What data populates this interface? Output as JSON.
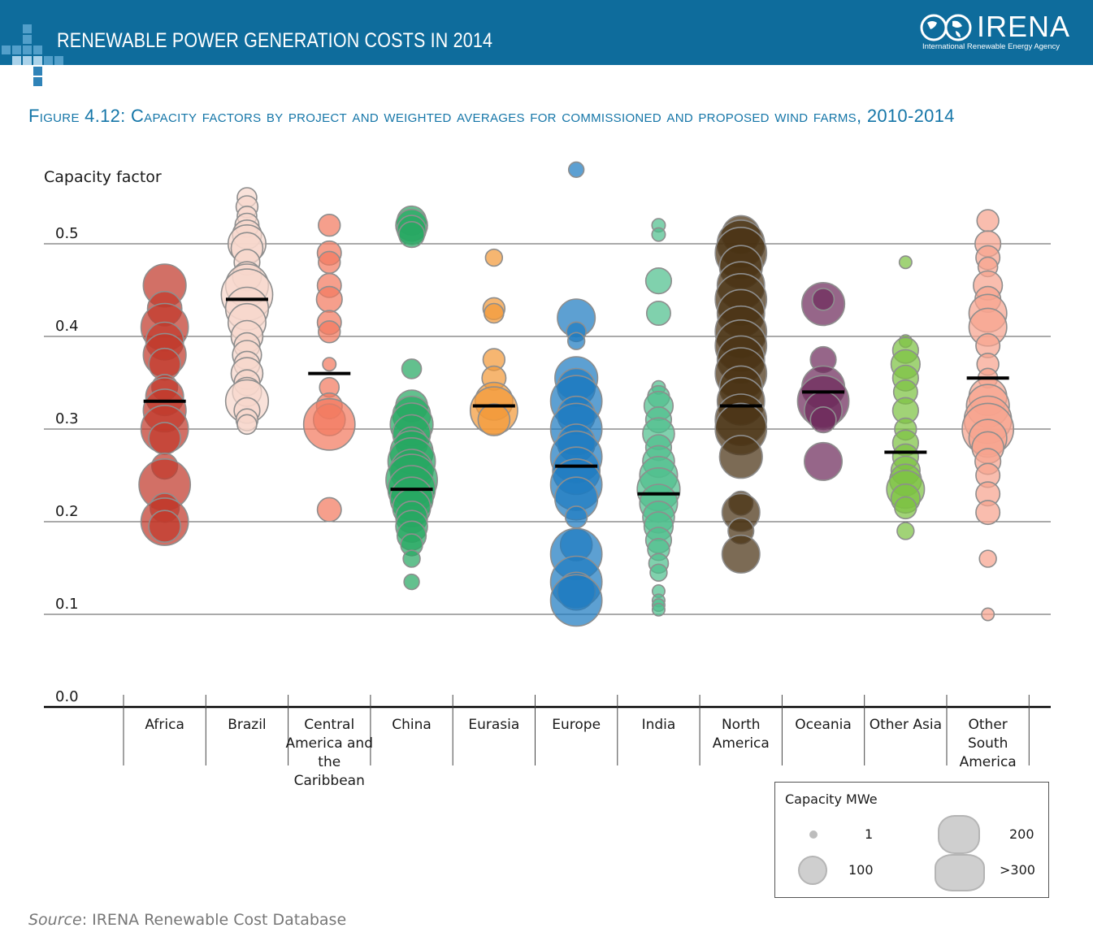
{
  "header": {
    "title": "RENEWABLE POWER GENERATION COSTS IN 2014",
    "logo_name": "IRENA",
    "logo_subtitle": "International Renewable Energy Agency"
  },
  "figure": {
    "title": "Figure 4.12: Capacity factors by project and weighted averages for commissioned and proposed wind farms, 2010-2014"
  },
  "source": {
    "label": "Source",
    "text": ": IRENA Renewable Cost Database"
  },
  "legend": {
    "title": "Capacity MWe",
    "items": [
      {
        "label": "1"
      },
      {
        "label": "100"
      },
      {
        "label": "200"
      },
      {
        "label": ">300"
      }
    ]
  },
  "chart_data": {
    "type": "scatter",
    "title": "Figure 4.12: Capacity factors by project and weighted averages for commissioned and proposed wind farms, 2010-2014",
    "ylabel": "Capacity factor",
    "xlabel": "",
    "ylim": [
      0.0,
      0.55
    ],
    "yticks": [
      "0.0",
      "0.1",
      "0.2",
      "0.3",
      "0.4",
      "0.5"
    ],
    "grid": true,
    "categories": [
      "Africa",
      "Brazil",
      "Central America and the Caribbean",
      "China",
      "Eurasia",
      "Europe",
      "India",
      "North America",
      "Oceania",
      "Other Asia",
      "Other South America"
    ],
    "colors": [
      "#c0392b",
      "#f6d7cc",
      "#f27a60",
      "#27a862",
      "#f39a3a",
      "#1f7bc1",
      "#4fbf8e",
      "#4a3213",
      "#6e2b5b",
      "#7dc242",
      "#f7a48f"
    ],
    "weighted_average": [
      0.33,
      0.44,
      0.36,
      0.235,
      0.325,
      0.26,
      0.23,
      0.325,
      0.34,
      0.275,
      0.355
    ],
    "series": [
      {
        "name": "Africa",
        "points": [
          {
            "y": 0.455,
            "mw": 200
          },
          {
            "y": 0.43,
            "mw": 120
          },
          {
            "y": 0.41,
            "mw": 250
          },
          {
            "y": 0.395,
            "mw": 150
          },
          {
            "y": 0.38,
            "mw": 200
          },
          {
            "y": 0.37,
            "mw": 100
          },
          {
            "y": 0.345,
            "mw": 60
          },
          {
            "y": 0.335,
            "mw": 150
          },
          {
            "y": 0.32,
            "mw": 200
          },
          {
            "y": 0.3,
            "mw": 250
          },
          {
            "y": 0.29,
            "mw": 100
          },
          {
            "y": 0.26,
            "mw": 60
          },
          {
            "y": 0.24,
            "mw": 300
          },
          {
            "y": 0.215,
            "mw": 80
          },
          {
            "y": 0.2,
            "mw": 250
          },
          {
            "y": 0.195,
            "mw": 100
          }
        ]
      },
      {
        "name": "Brazil",
        "points": [
          {
            "y": 0.55,
            "mw": 30
          },
          {
            "y": 0.54,
            "mw": 40
          },
          {
            "y": 0.53,
            "mw": 30
          },
          {
            "y": 0.52,
            "mw": 50
          },
          {
            "y": 0.51,
            "mw": 80
          },
          {
            "y": 0.5,
            "mw": 150
          },
          {
            "y": 0.495,
            "mw": 100
          },
          {
            "y": 0.48,
            "mw": 60
          },
          {
            "y": 0.465,
            "mw": 80
          },
          {
            "y": 0.455,
            "mw": 200
          },
          {
            "y": 0.445,
            "mw": 300
          },
          {
            "y": 0.43,
            "mw": 200
          },
          {
            "y": 0.415,
            "mw": 150
          },
          {
            "y": 0.4,
            "mw": 100
          },
          {
            "y": 0.39,
            "mw": 60
          },
          {
            "y": 0.38,
            "mw": 80
          },
          {
            "y": 0.37,
            "mw": 60
          },
          {
            "y": 0.36,
            "mw": 100
          },
          {
            "y": 0.35,
            "mw": 60
          },
          {
            "y": 0.34,
            "mw": 80
          },
          {
            "y": 0.33,
            "mw": 200
          },
          {
            "y": 0.32,
            "mw": 60
          },
          {
            "y": 0.31,
            "mw": 40
          },
          {
            "y": 0.305,
            "mw": 30
          }
        ]
      },
      {
        "name": "Central America and the Caribbean",
        "points": [
          {
            "y": 0.52,
            "mw": 40
          },
          {
            "y": 0.49,
            "mw": 50
          },
          {
            "y": 0.48,
            "mw": 40
          },
          {
            "y": 0.455,
            "mw": 50
          },
          {
            "y": 0.44,
            "mw": 60
          },
          {
            "y": 0.415,
            "mw": 50
          },
          {
            "y": 0.405,
            "mw": 40
          },
          {
            "y": 0.37,
            "mw": 10
          },
          {
            "y": 0.345,
            "mw": 30
          },
          {
            "y": 0.325,
            "mw": 60
          },
          {
            "y": 0.31,
            "mw": 100
          },
          {
            "y": 0.305,
            "mw": 300
          },
          {
            "y": 0.213,
            "mw": 50
          }
        ]
      },
      {
        "name": "China",
        "points": [
          {
            "y": 0.525,
            "mw": 80
          },
          {
            "y": 0.52,
            "mw": 100
          },
          {
            "y": 0.515,
            "mw": 80
          },
          {
            "y": 0.51,
            "mw": 60
          },
          {
            "y": 0.365,
            "mw": 30
          },
          {
            "y": 0.325,
            "mw": 100
          },
          {
            "y": 0.315,
            "mw": 150
          },
          {
            "y": 0.305,
            "mw": 200
          },
          {
            "y": 0.295,
            "mw": 150
          },
          {
            "y": 0.285,
            "mw": 100
          },
          {
            "y": 0.275,
            "mw": 200
          },
          {
            "y": 0.265,
            "mw": 250
          },
          {
            "y": 0.255,
            "mw": 200
          },
          {
            "y": 0.245,
            "mw": 300
          },
          {
            "y": 0.235,
            "mw": 250
          },
          {
            "y": 0.225,
            "mw": 200
          },
          {
            "y": 0.215,
            "mw": 150
          },
          {
            "y": 0.205,
            "mw": 100
          },
          {
            "y": 0.195,
            "mw": 100
          },
          {
            "y": 0.185,
            "mw": 80
          },
          {
            "y": 0.175,
            "mw": 40
          },
          {
            "y": 0.16,
            "mw": 20
          },
          {
            "y": 0.135,
            "mw": 15
          }
        ]
      },
      {
        "name": "Eurasia",
        "points": [
          {
            "y": 0.485,
            "mw": 20
          },
          {
            "y": 0.43,
            "mw": 40
          },
          {
            "y": 0.425,
            "mw": 30
          },
          {
            "y": 0.375,
            "mw": 40
          },
          {
            "y": 0.355,
            "mw": 50
          },
          {
            "y": 0.33,
            "mw": 150
          },
          {
            "y": 0.32,
            "mw": 250
          },
          {
            "y": 0.31,
            "mw": 100
          }
        ]
      },
      {
        "name": "Europe",
        "points": [
          {
            "y": 0.58,
            "mw": 15
          },
          {
            "y": 0.42,
            "mw": 150
          },
          {
            "y": 0.405,
            "mw": 30
          },
          {
            "y": 0.395,
            "mw": 20
          },
          {
            "y": 0.355,
            "mw": 200
          },
          {
            "y": 0.345,
            "mw": 150
          },
          {
            "y": 0.33,
            "mw": 300
          },
          {
            "y": 0.315,
            "mw": 150
          },
          {
            "y": 0.3,
            "mw": 300
          },
          {
            "y": 0.285,
            "mw": 150
          },
          {
            "y": 0.27,
            "mw": 300
          },
          {
            "y": 0.255,
            "mw": 250
          },
          {
            "y": 0.24,
            "mw": 300
          },
          {
            "y": 0.225,
            "mw": 200
          },
          {
            "y": 0.205,
            "mw": 40
          },
          {
            "y": 0.175,
            "mw": 100
          },
          {
            "y": 0.165,
            "mw": 300
          },
          {
            "y": 0.135,
            "mw": 300
          },
          {
            "y": 0.125,
            "mw": 150
          },
          {
            "y": 0.115,
            "mw": 300
          }
        ]
      },
      {
        "name": "India",
        "points": [
          {
            "y": 0.52,
            "mw": 10
          },
          {
            "y": 0.51,
            "mw": 10
          },
          {
            "y": 0.46,
            "mw": 60
          },
          {
            "y": 0.425,
            "mw": 50
          },
          {
            "y": 0.345,
            "mw": 10
          },
          {
            "y": 0.335,
            "mw": 40
          },
          {
            "y": 0.325,
            "mw": 80
          },
          {
            "y": 0.31,
            "mw": 60
          },
          {
            "y": 0.295,
            "mw": 100
          },
          {
            "y": 0.28,
            "mw": 60
          },
          {
            "y": 0.265,
            "mw": 100
          },
          {
            "y": 0.25,
            "mw": 150
          },
          {
            "y": 0.235,
            "mw": 200
          },
          {
            "y": 0.22,
            "mw": 150
          },
          {
            "y": 0.205,
            "mw": 100
          },
          {
            "y": 0.195,
            "mw": 80
          },
          {
            "y": 0.18,
            "mw": 60
          },
          {
            "y": 0.17,
            "mw": 40
          },
          {
            "y": 0.155,
            "mw": 30
          },
          {
            "y": 0.145,
            "mw": 20
          },
          {
            "y": 0.125,
            "mw": 8
          },
          {
            "y": 0.115,
            "mw": 8
          },
          {
            "y": 0.11,
            "mw": 8
          },
          {
            "y": 0.105,
            "mw": 8
          }
        ]
      },
      {
        "name": "North America",
        "points": [
          {
            "y": 0.51,
            "mw": 150
          },
          {
            "y": 0.5,
            "mw": 250
          },
          {
            "y": 0.49,
            "mw": 300
          },
          {
            "y": 0.475,
            "mw": 200
          },
          {
            "y": 0.455,
            "mw": 250
          },
          {
            "y": 0.44,
            "mw": 300
          },
          {
            "y": 0.425,
            "mw": 250
          },
          {
            "y": 0.405,
            "mw": 300
          },
          {
            "y": 0.39,
            "mw": 300
          },
          {
            "y": 0.375,
            "mw": 250
          },
          {
            "y": 0.36,
            "mw": 300
          },
          {
            "y": 0.345,
            "mw": 200
          },
          {
            "y": 0.33,
            "mw": 250
          },
          {
            "y": 0.31,
            "mw": 300
          },
          {
            "y": 0.3,
            "mw": 300
          },
          {
            "y": 0.27,
            "mw": 200
          },
          {
            "y": 0.22,
            "mw": 50
          },
          {
            "y": 0.21,
            "mw": 150
          },
          {
            "y": 0.19,
            "mw": 60
          },
          {
            "y": 0.165,
            "mw": 150
          }
        ]
      },
      {
        "name": "Oceania",
        "points": [
          {
            "y": 0.435,
            "mw": 200
          },
          {
            "y": 0.44,
            "mw": 40
          },
          {
            "y": 0.375,
            "mw": 60
          },
          {
            "y": 0.345,
            "mw": 200
          },
          {
            "y": 0.33,
            "mw": 300
          },
          {
            "y": 0.32,
            "mw": 150
          },
          {
            "y": 0.31,
            "mw": 60
          },
          {
            "y": 0.265,
            "mw": 150
          }
        ]
      },
      {
        "name": "Other Asia",
        "points": [
          {
            "y": 0.48,
            "mw": 8
          },
          {
            "y": 0.395,
            "mw": 8
          },
          {
            "y": 0.385,
            "mw": 60
          },
          {
            "y": 0.37,
            "mw": 80
          },
          {
            "y": 0.355,
            "mw": 60
          },
          {
            "y": 0.34,
            "mw": 50
          },
          {
            "y": 0.32,
            "mw": 60
          },
          {
            "y": 0.3,
            "mw": 40
          },
          {
            "y": 0.285,
            "mw": 60
          },
          {
            "y": 0.27,
            "mw": 60
          },
          {
            "y": 0.255,
            "mw": 80
          },
          {
            "y": 0.245,
            "mw": 100
          },
          {
            "y": 0.235,
            "mw": 150
          },
          {
            "y": 0.225,
            "mw": 80
          },
          {
            "y": 0.215,
            "mw": 40
          },
          {
            "y": 0.19,
            "mw": 20
          }
        ]
      },
      {
        "name": "Other South America",
        "points": [
          {
            "y": 0.525,
            "mw": 40
          },
          {
            "y": 0.5,
            "mw": 60
          },
          {
            "y": 0.485,
            "mw": 50
          },
          {
            "y": 0.475,
            "mw": 30
          },
          {
            "y": 0.455,
            "mw": 80
          },
          {
            "y": 0.44,
            "mw": 60
          },
          {
            "y": 0.425,
            "mw": 150
          },
          {
            "y": 0.41,
            "mw": 150
          },
          {
            "y": 0.39,
            "mw": 50
          },
          {
            "y": 0.37,
            "mw": 40
          },
          {
            "y": 0.355,
            "mw": 30
          },
          {
            "y": 0.335,
            "mw": 150
          },
          {
            "y": 0.325,
            "mw": 200
          },
          {
            "y": 0.31,
            "mw": 250
          },
          {
            "y": 0.3,
            "mw": 300
          },
          {
            "y": 0.29,
            "mw": 150
          },
          {
            "y": 0.28,
            "mw": 100
          },
          {
            "y": 0.265,
            "mw": 60
          },
          {
            "y": 0.25,
            "mw": 50
          },
          {
            "y": 0.23,
            "mw": 50
          },
          {
            "y": 0.21,
            "mw": 50
          },
          {
            "y": 0.16,
            "mw": 20
          },
          {
            "y": 0.1,
            "mw": 8
          }
        ]
      }
    ]
  }
}
